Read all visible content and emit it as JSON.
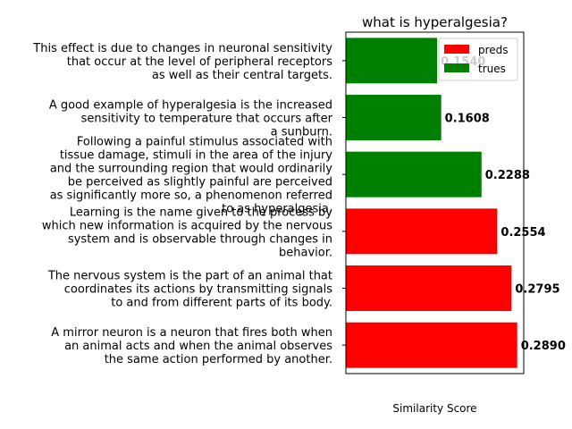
{
  "chart_data": {
    "type": "bar",
    "orientation": "horizontal",
    "title": "what is hyperalgesia?",
    "xlabel": "Similarity Score",
    "ylabel": "",
    "xlim": [
      0,
      0.3
    ],
    "x_tick_labels_shown": false,
    "grid": false,
    "legend": {
      "placement": "top-right",
      "entries": [
        {
          "name": "preds",
          "color": "#ff0000"
        },
        {
          "name": "trues",
          "color": "#008000"
        }
      ]
    },
    "categories": [
      [
        "This effect is due to changes in neuronal sensitivity",
        "that occur at the level of peripheral receptors",
        "as well as their central targets."
      ],
      [
        "A good example of hyperalgesia is the increased",
        "sensitivity to temperature that occurs after",
        "a sunburn."
      ],
      [
        "Following a painful stimulus associated with",
        "tissue damage, stimuli in the area of the injury",
        "and the surrounding region that would ordinarily",
        "be perceived as slightly painful are perceived",
        "as significantly more so, a phenomenon referred",
        "to as hyperalgesia."
      ],
      [
        "Learning is the name given to the process by",
        "which new information is acquired by the nervous",
        "system and is observable through changes in",
        "behavior."
      ],
      [
        "The nervous system is the part of an animal that",
        "coordinates its actions by transmitting signals",
        "to and from different parts of its body."
      ],
      [
        "A mirror neuron is a neuron that fires both when",
        "an animal acts and when the animal observes",
        "the same action performed by another."
      ]
    ],
    "values": [
      0.154,
      0.1608,
      0.2288,
      0.2554,
      0.2795,
      0.289
    ],
    "value_labels": [
      "0.1540",
      "0.1608",
      "0.2288",
      "0.2554",
      "0.2795",
      "0.2890"
    ],
    "series_of_bar": [
      "trues",
      "trues",
      "trues",
      "preds",
      "preds",
      "preds"
    ],
    "colors": {
      "preds": "#ff0000",
      "trues": "#008000"
    }
  }
}
